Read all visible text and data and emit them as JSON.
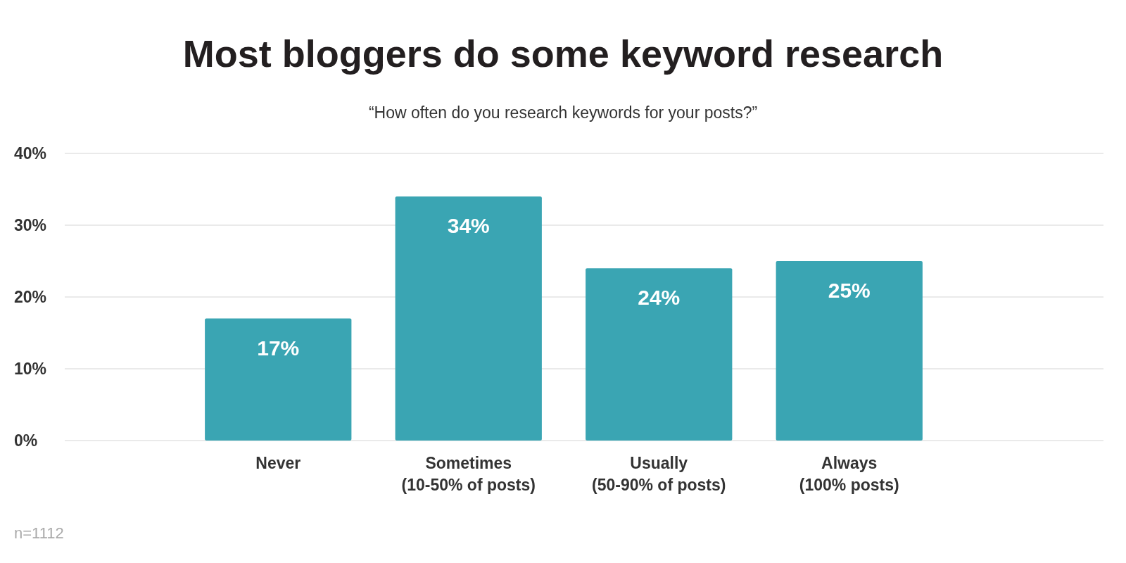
{
  "chart_data": {
    "type": "bar",
    "title": "Most bloggers do some keyword research",
    "subtitle": "“How often do you research keywords for your posts?”",
    "categories": [
      "Never",
      "Sometimes\n(10-50% of posts)",
      "Usually\n(50-90% of posts)",
      "Always\n(100% posts)"
    ],
    "values": [
      17,
      34,
      24,
      25
    ],
    "color": "#3aa5b3",
    "ylim": [
      0,
      40
    ],
    "yticks": [
      {
        "value": 0,
        "label": "0%"
      },
      {
        "value": 10,
        "label": "10%"
      },
      {
        "value": 20,
        "label": "20%"
      },
      {
        "value": 30,
        "label": "30%"
      },
      {
        "value": 40,
        "label": "40%"
      }
    ],
    "grid": "y",
    "value_labels": [
      "17%",
      "34%",
      "24%",
      "25%"
    ],
    "annotations": [
      "n=1112"
    ]
  }
}
